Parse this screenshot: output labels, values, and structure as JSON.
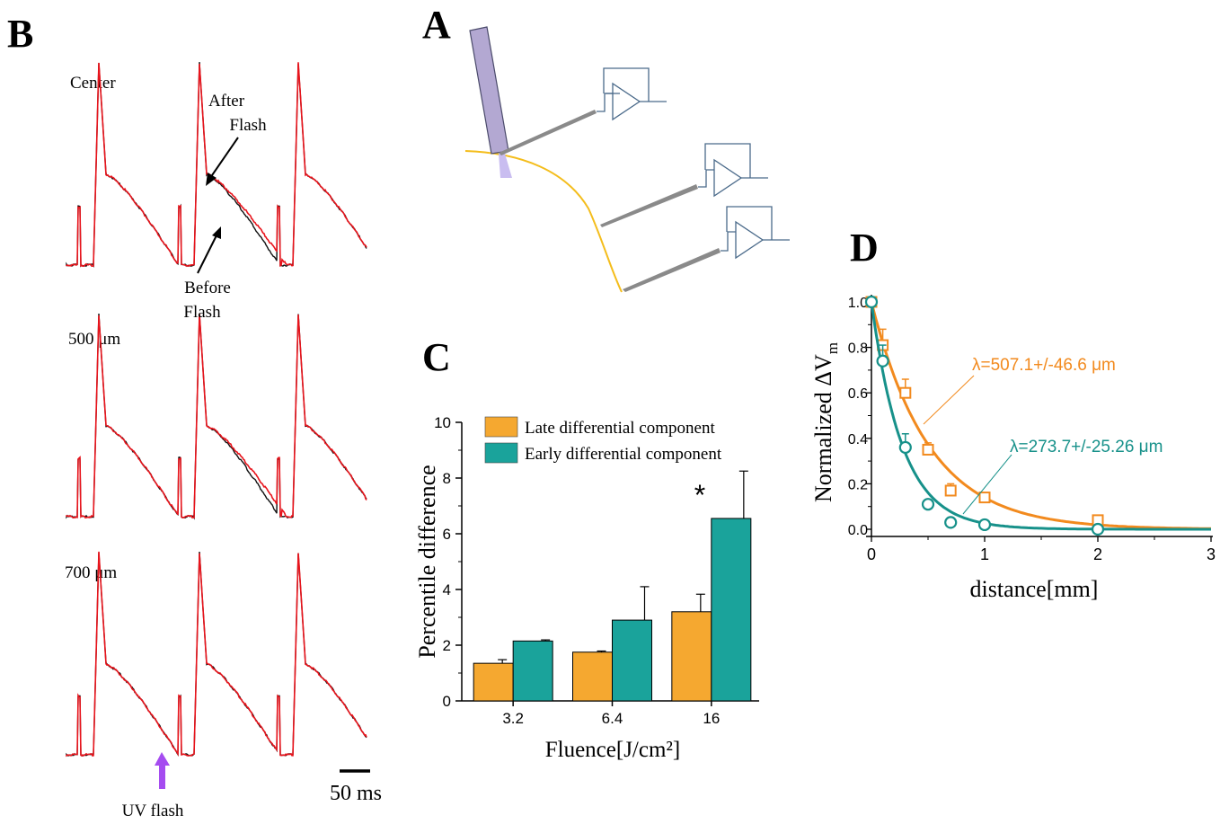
{
  "panels": {
    "a": {
      "letter": "A"
    },
    "b": {
      "letter": "B",
      "traces": [
        {
          "label": "Center"
        },
        {
          "label": "500 μm"
        },
        {
          "label": "700 μm"
        }
      ],
      "annotation_after": [
        "After",
        "Flash"
      ],
      "annotation_before": [
        "Before",
        "Flash"
      ],
      "uv_label": "UV flash",
      "scalebar_label": "50 ms",
      "colors": {
        "after": "#e8141c",
        "before": "#111111",
        "uv_arrow": "#a54cf0"
      }
    },
    "c": {
      "letter": "C"
    },
    "d": {
      "letter": "D"
    }
  },
  "chart_data": [
    {
      "type": "bar",
      "panel": "C",
      "categories": [
        "3.2",
        "6.4",
        "16"
      ],
      "series": [
        {
          "name": "Late differential component",
          "values": [
            1.35,
            1.75,
            3.2
          ],
          "errors": [
            0.13,
            0.04,
            0.63
          ],
          "color": "#f5a830"
        },
        {
          "name": "Early differential component",
          "values": [
            2.15,
            2.9,
            6.55
          ],
          "errors": [
            0.04,
            1.2,
            1.7
          ],
          "color": "#1aa39b"
        }
      ],
      "ylim": [
        0,
        10
      ],
      "yticks": [
        0,
        2,
        4,
        6,
        8,
        10
      ],
      "ylabel": "Percentile difference",
      "xlabel": "Fluence[J/cm²]",
      "annotation": "*",
      "legend": "top-left"
    },
    {
      "type": "scatter",
      "panel": "D",
      "xlim": [
        0,
        3
      ],
      "ylim": [
        0,
        1.0
      ],
      "xticks": [
        "0",
        "1",
        "2",
        "3"
      ],
      "yticks": [
        "0.0",
        "0.2",
        "0.4",
        "0.6",
        "0.8",
        "1.0"
      ],
      "xlabel": "distance[mm]",
      "ylabel": "Normalized ΔV",
      "ylabel_sub": "m",
      "series": [
        {
          "name": "λ=507.1+/-46.6 μm",
          "marker": "square",
          "color": "#f28a1e",
          "points": [
            {
              "x": 0.0,
              "y": 1.0,
              "err": 0.0
            },
            {
              "x": 0.1,
              "y": 0.81,
              "err": 0.07
            },
            {
              "x": 0.3,
              "y": 0.6,
              "err": 0.06
            },
            {
              "x": 0.5,
              "y": 0.35,
              "err": 0.03
            },
            {
              "x": 0.7,
              "y": 0.17,
              "err": 0.03
            },
            {
              "x": 1.0,
              "y": 0.14,
              "err": 0.02
            },
            {
              "x": 2.0,
              "y": 0.04,
              "err": 0.01
            }
          ],
          "fit": {
            "model": "exponential_decay",
            "lambda_mm": 0.5071
          }
        },
        {
          "name": "λ=273.7+/-25.26 μm",
          "marker": "circle",
          "color": "#17918a",
          "points": [
            {
              "x": 0.0,
              "y": 1.0,
              "err": 0.0
            },
            {
              "x": 0.1,
              "y": 0.74,
              "err": 0.07
            },
            {
              "x": 0.3,
              "y": 0.36,
              "err": 0.06
            },
            {
              "x": 0.5,
              "y": 0.11,
              "err": 0.01
            },
            {
              "x": 0.7,
              "y": 0.03,
              "err": 0.01
            },
            {
              "x": 1.0,
              "y": 0.02,
              "err": 0.01
            },
            {
              "x": 2.0,
              "y": 0.0,
              "err": 0.0
            }
          ],
          "fit": {
            "model": "exponential_decay",
            "lambda_mm": 0.2737
          }
        }
      ]
    }
  ]
}
